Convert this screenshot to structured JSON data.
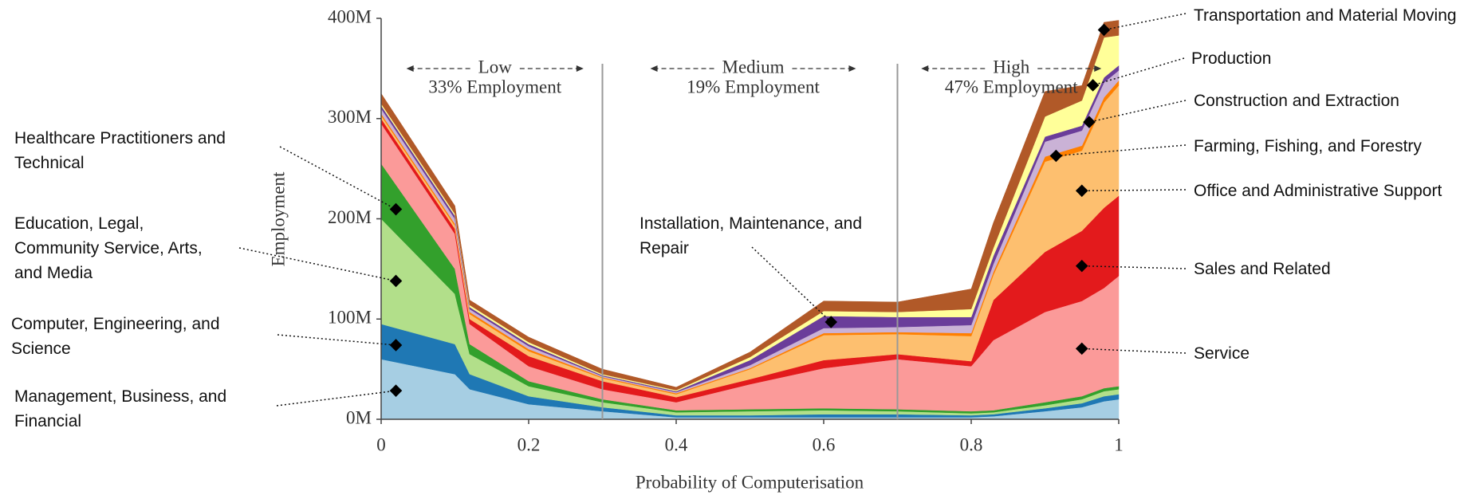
{
  "chart_data": {
    "type": "stacked_area",
    "x_label": "Probability of Computerisation",
    "y_label": "Employment",
    "x": [
      0,
      0.1,
      0.12,
      0.2,
      0.3,
      0.4,
      0.5,
      0.6,
      0.7,
      0.8,
      0.83,
      0.9,
      0.95,
      0.98,
      1
    ],
    "xlim": [
      0,
      1
    ],
    "xticks": [
      0,
      0.2,
      0.4,
      0.6,
      0.8,
      1
    ],
    "ylim": [
      0,
      400000000
    ],
    "yticks": [
      {
        "value": 0,
        "label": "0M"
      },
      {
        "value": 100000000,
        "label": "100M"
      },
      {
        "value": 200000000,
        "label": "200M"
      },
      {
        "value": 300000000,
        "label": "300M"
      },
      {
        "value": 400000000,
        "label": "400M"
      }
    ],
    "regions": [
      {
        "name": "Low",
        "share": "33% Employment",
        "from": 0,
        "to": 0.3
      },
      {
        "name": "Medium",
        "share": "19% Employment",
        "from": 0.3,
        "to": 0.7
      },
      {
        "name": "High",
        "share": "47% Employment",
        "from": 0.7,
        "to": 1
      }
    ],
    "series": [
      {
        "name": "Management, Business, and Financial",
        "color": "#a6cee3",
        "values": [
          60000000,
          45000000,
          30000000,
          15000000,
          8000000,
          2000000,
          2000000,
          2000000,
          2000000,
          2000000,
          3000000,
          8000000,
          12000000,
          18000000,
          20000000
        ]
      },
      {
        "name": "Computer, Engineering, and Science",
        "color": "#1f78b4",
        "values": [
          35000000,
          30000000,
          15000000,
          8000000,
          4000000,
          2000000,
          2000000,
          3000000,
          3000000,
          2000000,
          2000000,
          3000000,
          4000000,
          5000000,
          5000000
        ]
      },
      {
        "name": "Education, Legal, Community Service, Arts, and Media",
        "color": "#b2df8a",
        "values": [
          105000000,
          50000000,
          20000000,
          10000000,
          5000000,
          3000000,
          4000000,
          4000000,
          3000000,
          2000000,
          2000000,
          3000000,
          4000000,
          5000000,
          5000000
        ]
      },
      {
        "name": "Healthcare Practitioners and Technical",
        "color": "#33a02c",
        "values": [
          55000000,
          25000000,
          10000000,
          5000000,
          3000000,
          2000000,
          2000000,
          2000000,
          2000000,
          2000000,
          2000000,
          3000000,
          3000000,
          3000000,
          3000000
        ]
      },
      {
        "name": "Service",
        "color": "#fb9a99",
        "values": [
          40000000,
          35000000,
          20000000,
          15000000,
          10000000,
          8000000,
          25000000,
          40000000,
          50000000,
          45000000,
          70000000,
          90000000,
          95000000,
          100000000,
          110000000
        ]
      },
      {
        "name": "Sales and Related",
        "color": "#e31a1c",
        "values": [
          5000000,
          5000000,
          5000000,
          10000000,
          8000000,
          5000000,
          5000000,
          8000000,
          5000000,
          5000000,
          40000000,
          60000000,
          70000000,
          80000000,
          80000000
        ]
      },
      {
        "name": "Office and Administrative Support",
        "color": "#fdbf6f",
        "values": [
          3000000,
          3000000,
          5000000,
          5000000,
          3000000,
          3000000,
          10000000,
          25000000,
          20000000,
          25000000,
          25000000,
          90000000,
          80000000,
          105000000,
          110000000
        ]
      },
      {
        "name": "Farming, Fishing, and Forestry",
        "color": "#ff7f00",
        "values": [
          2000000,
          2000000,
          2000000,
          2000000,
          1000000,
          1000000,
          1000000,
          2000000,
          2000000,
          3000000,
          3000000,
          5000000,
          5000000,
          5000000,
          5000000
        ]
      },
      {
        "name": "Construction and Extraction",
        "color": "#cab2d6",
        "values": [
          5000000,
          5000000,
          3000000,
          3000000,
          1000000,
          1000000,
          3000000,
          5000000,
          5000000,
          8000000,
          8000000,
          15000000,
          15000000,
          15000000,
          10000000
        ]
      },
      {
        "name": "Installation, Maintenance, and Repair",
        "color": "#6a3d9a",
        "values": [
          3000000,
          3000000,
          2000000,
          2000000,
          1000000,
          1000000,
          5000000,
          12000000,
          10000000,
          8000000,
          8000000,
          5000000,
          5000000,
          5000000,
          5000000
        ]
      },
      {
        "name": "Production",
        "color": "#ffff99",
        "values": [
          2000000,
          2000000,
          2000000,
          2000000,
          1000000,
          1000000,
          3000000,
          5000000,
          5000000,
          8000000,
          8000000,
          20000000,
          25000000,
          40000000,
          30000000
        ]
      },
      {
        "name": "Transportation and Material Moving",
        "color": "#b15928",
        "values": [
          10000000,
          8000000,
          5000000,
          5000000,
          5000000,
          3000000,
          5000000,
          10000000,
          10000000,
          20000000,
          25000000,
          25000000,
          15000000,
          15000000,
          15000000
        ]
      }
    ]
  }
}
